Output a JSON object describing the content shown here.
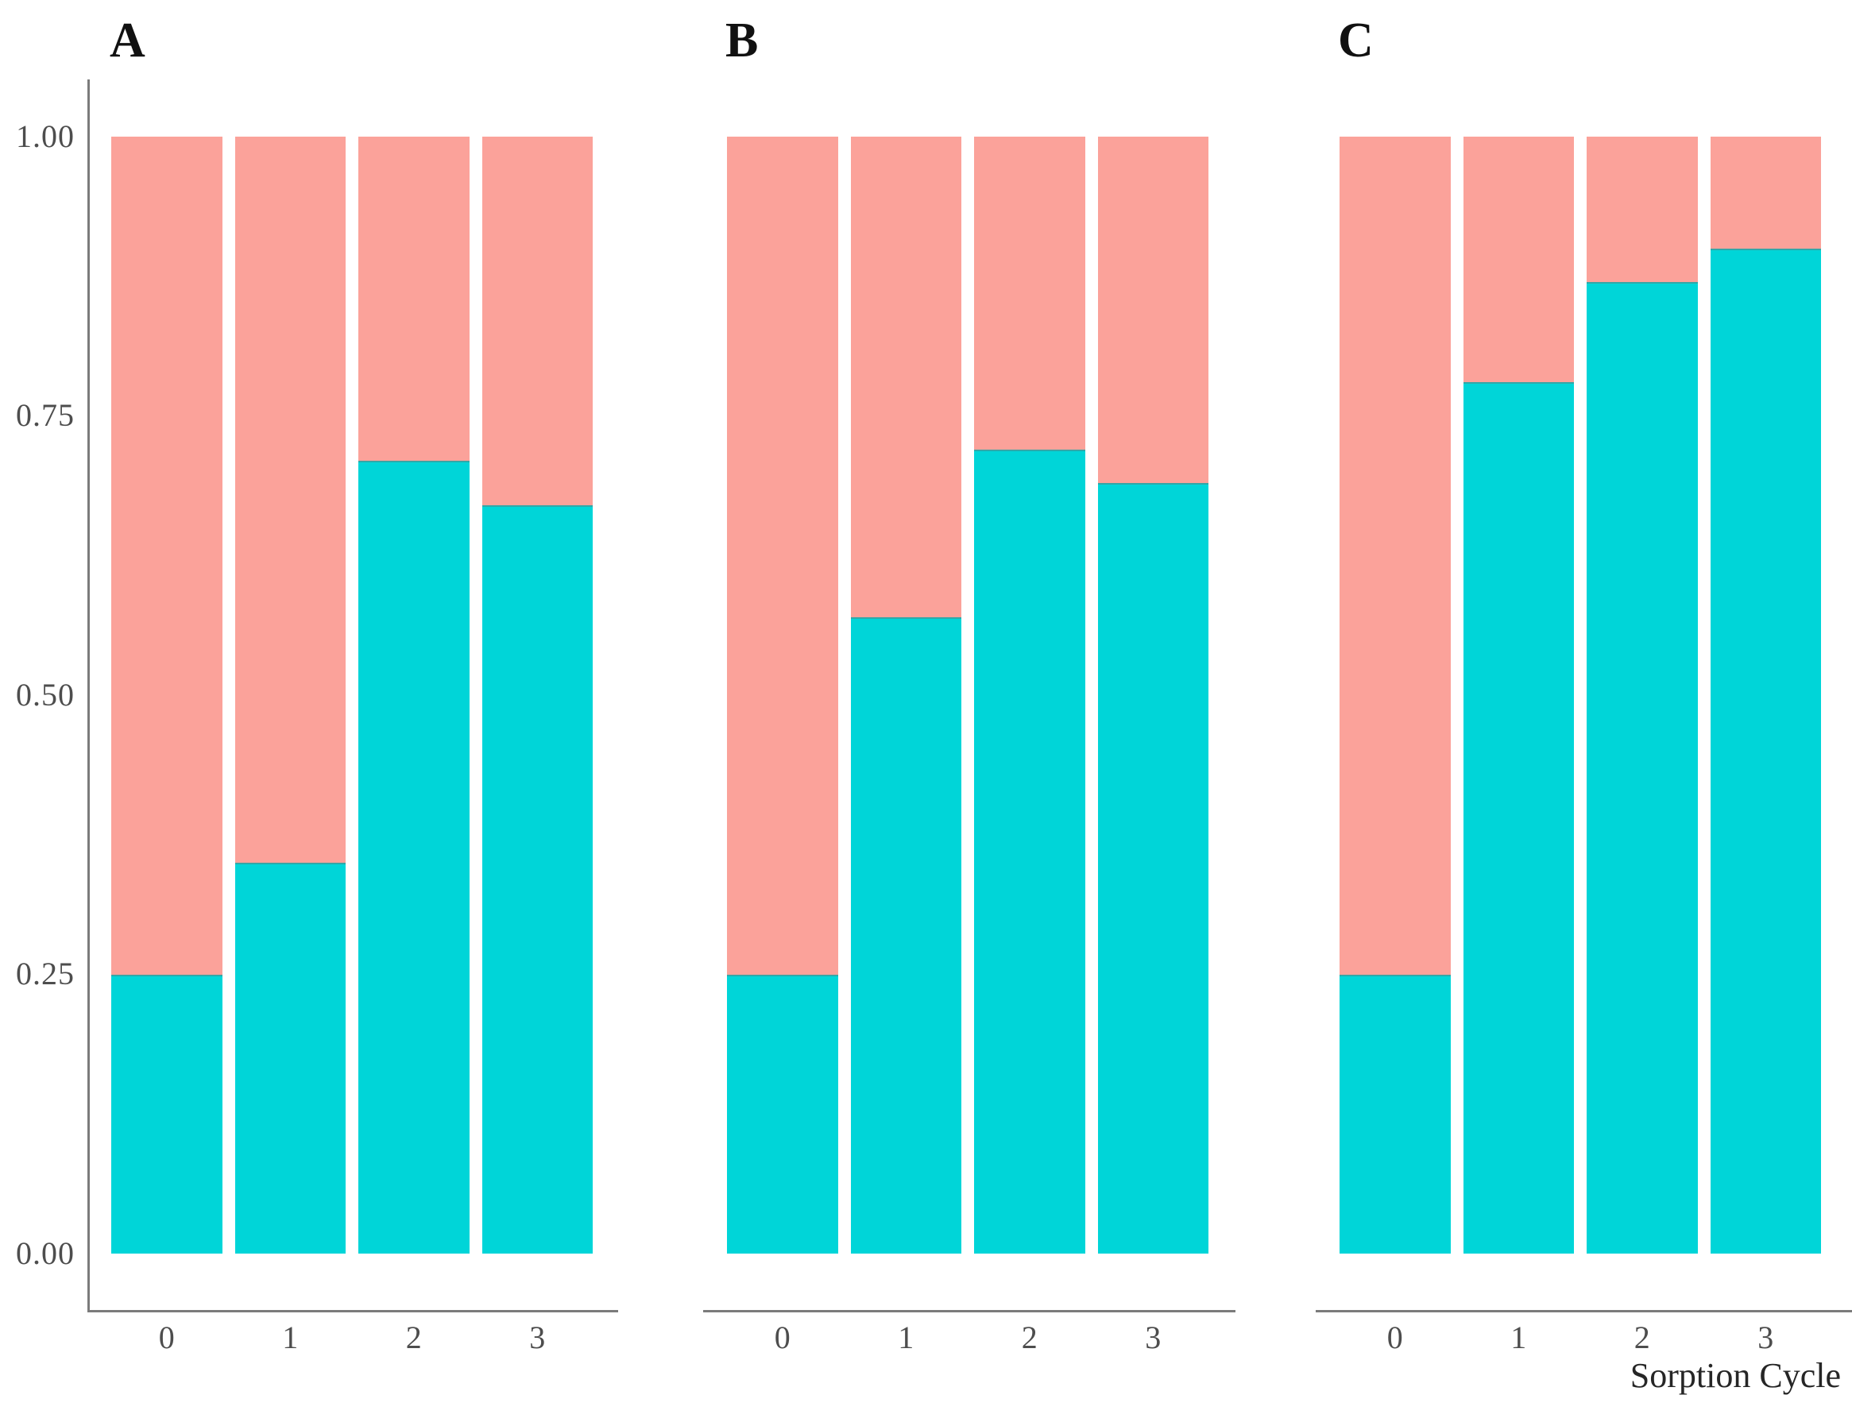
{
  "figure": {
    "background": "#ffffff"
  },
  "chart_data": {
    "type": "bar",
    "subtype": "stacked-proportion-bar",
    "title": "",
    "xlabel": "Sorption Cycle",
    "ylabel": "",
    "ylim": [
      0,
      1
    ],
    "y_tick_labels": [
      "1.00",
      "0.75",
      "0.50",
      "0.25",
      "0.00"
    ],
    "categories": [
      "0",
      "1",
      "2",
      "3"
    ],
    "legend": "none",
    "grid": "off",
    "colors": {
      "teal": "#00D5D8",
      "salmon": "#FBA29A",
      "axis_line": "#7b7b7b",
      "tick_text": "#4d4d4d",
      "panel_letter": "#111111"
    },
    "panels": [
      {
        "label": "A",
        "series": [
          {
            "name": "teal-bottom-fraction",
            "color": "#00D5D8",
            "values": [
              0.25,
              0.35,
              0.71,
              0.67
            ]
          },
          {
            "name": "salmon-top-fraction",
            "color": "#FBA29A",
            "values": [
              0.75,
              0.65,
              0.29,
              0.33
            ]
          }
        ]
      },
      {
        "label": "B",
        "series": [
          {
            "name": "teal-bottom-fraction",
            "color": "#00D5D8",
            "values": [
              0.25,
              0.57,
              0.72,
              0.69
            ]
          },
          {
            "name": "salmon-top-fraction",
            "color": "#FBA29A",
            "values": [
              0.75,
              0.43,
              0.28,
              0.31
            ]
          }
        ]
      },
      {
        "label": "C",
        "series": [
          {
            "name": "teal-bottom-fraction",
            "color": "#00D5D8",
            "values": [
              0.25,
              0.78,
              0.87,
              0.9
            ]
          },
          {
            "name": "salmon-top-fraction",
            "color": "#FBA29A",
            "values": [
              0.75,
              0.22,
              0.13,
              0.1
            ]
          }
        ]
      }
    ]
  }
}
